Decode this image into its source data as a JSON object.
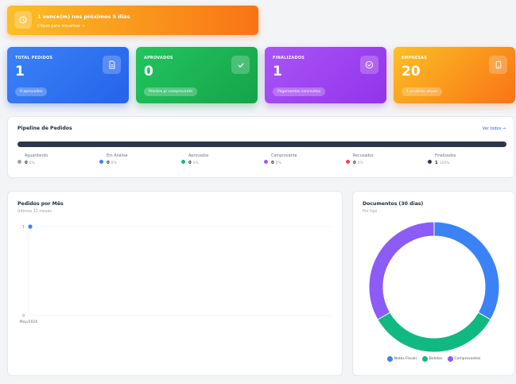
{
  "alert": {
    "title": "1 vence(m) nos próximos 5 dias",
    "subtitle": "Clique para visualizar →",
    "icon": "clock-icon"
  },
  "cards": [
    {
      "label": "TOTAL PEDIDOS",
      "value": "1",
      "pill": "0 aprovados",
      "icon": "document-icon",
      "color_from": "#3b82f6",
      "color_to": "#2563eb"
    },
    {
      "label": "APROVADOS",
      "value": "0",
      "pill": "Prontos p/ comprovante",
      "icon": "check-icon",
      "color_from": "#22c55e",
      "color_to": "#16a34a"
    },
    {
      "label": "FINALIZADOS",
      "value": "1",
      "pill": "Pagamentos concluídos",
      "icon": "check-circle-icon",
      "color_from": "#a855f7",
      "color_to": "#9333ea"
    },
    {
      "label": "EMPRESAS",
      "value": "20",
      "pill": "1 usuários ativos",
      "icon": "building-icon",
      "color_from": "#fbbf24",
      "color_to": "#f97316"
    }
  ],
  "pipeline": {
    "title": "Pipeline de Pedidos",
    "link": "Ver todos →",
    "stages": [
      {
        "name": "Aguardando",
        "count": "0",
        "pct": "0%",
        "color": "#9ca3af"
      },
      {
        "name": "Em Análise",
        "count": "0",
        "pct": "0%",
        "color": "#3b82f6"
      },
      {
        "name": "Aprovados",
        "count": "0",
        "pct": "0%",
        "color": "#10b981"
      },
      {
        "name": "Comprovante",
        "count": "0",
        "pct": "0%",
        "color": "#a855f7"
      },
      {
        "name": "Recusados",
        "count": "0",
        "pct": "0%",
        "color": "#f43f5e"
      },
      {
        "name": "Finalizados",
        "count": "1",
        "pct": "100%",
        "color": "#2d3748"
      }
    ]
  },
  "monthly": {
    "title": "Pedidos por Mês",
    "subtitle": "Últimos 12 meses"
  },
  "docs": {
    "title": "Documentos (30 dias)",
    "subtitle": "Por tipo"
  },
  "chart_data": [
    {
      "type": "line",
      "categories": [
        "May/2026"
      ],
      "series": [
        {
          "values": [
            1
          ]
        }
      ],
      "ylim": [
        0,
        1
      ],
      "yticks": [
        "0",
        "1"
      ],
      "color": "#3b82f6",
      "grid": true
    },
    {
      "type": "pie",
      "donut": true,
      "labels": [
        "Notas Fiscais",
        "Boletos",
        "Comprovantes"
      ],
      "values": [
        1,
        1,
        1
      ],
      "colors": [
        "#3b82f6",
        "#10b981",
        "#8b5cf6"
      ],
      "legend": "bottom"
    }
  ]
}
